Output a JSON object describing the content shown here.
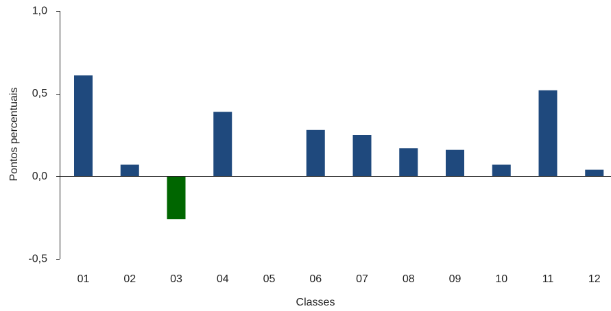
{
  "chart_data": {
    "type": "bar",
    "title": "",
    "xlabel": "Classes",
    "ylabel": "Pontos percentuais",
    "categories": [
      "01",
      "02",
      "03",
      "04",
      "05",
      "06",
      "07",
      "08",
      "09",
      "10",
      "11",
      "12"
    ],
    "values": [
      0.61,
      0.07,
      -0.26,
      0.39,
      0.0,
      0.28,
      0.25,
      0.17,
      0.16,
      0.07,
      0.52,
      0.04
    ],
    "ylim": [
      -0.5,
      1.0
    ],
    "yticks": [
      -0.5,
      0.0,
      0.5,
      1.0
    ],
    "ytick_labels": [
      "-0,5",
      "0,0",
      "0,5",
      "1,0"
    ],
    "grid": false,
    "legend": "none",
    "colors": {
      "positive": "#1f497d",
      "negative": "#006600",
      "axis": "#222222"
    }
  }
}
